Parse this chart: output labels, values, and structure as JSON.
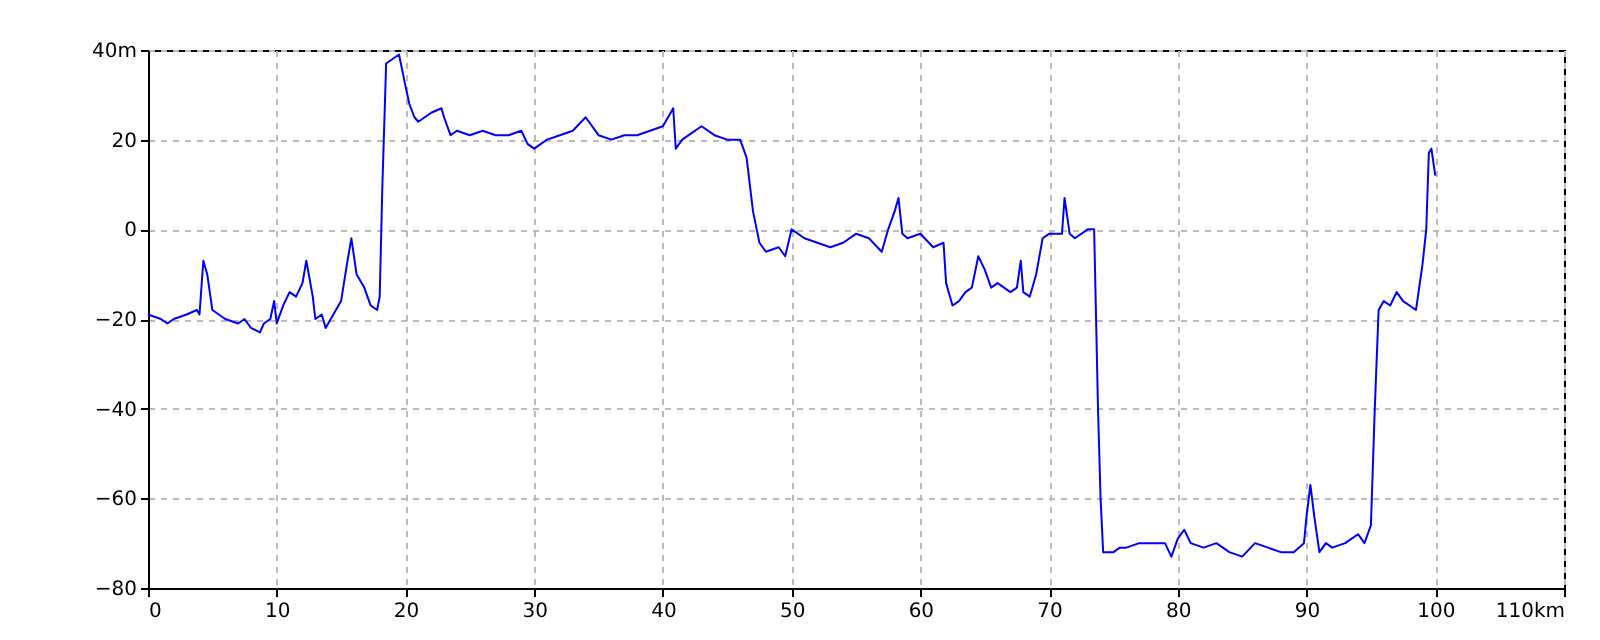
{
  "chart_data": {
    "type": "line",
    "x": [
      0,
      1,
      1.5,
      2,
      3,
      3.8,
      4,
      4.3,
      4.6,
      5,
      6,
      7,
      7.5,
      8,
      8.7,
      9,
      9.5,
      9.8,
      10,
      10.5,
      11,
      11.5,
      12,
      12.3,
      12.8,
      13,
      13.5,
      13.8,
      14.2,
      15,
      15.5,
      15.8,
      16.2,
      16.8,
      17.3,
      17.8,
      18,
      18.2,
      18.5,
      19,
      19.5,
      20,
      20.3,
      20.7,
      21,
      22,
      22.8,
      23,
      23.5,
      24,
      25,
      26,
      27,
      28,
      29,
      29.5,
      30,
      31,
      32,
      33,
      34,
      35,
      36,
      37,
      38,
      39,
      40,
      40.8,
      41,
      41.5,
      42,
      43,
      44,
      45,
      46,
      46.5,
      47,
      47.5,
      48,
      49,
      49.5,
      50,
      51,
      52,
      53,
      54,
      55,
      56,
      57,
      57.5,
      58,
      58.3,
      58.6,
      59,
      60,
      61,
      61.8,
      62,
      62.5,
      63,
      63.5,
      64,
      64.5,
      65,
      65.5,
      66,
      67,
      67.5,
      67.8,
      68,
      68.5,
      69,
      69.5,
      70,
      71,
      71.2,
      71.6,
      72,
      73,
      73.5,
      73.8,
      74,
      74.2,
      75,
      75.5,
      76,
      77,
      78,
      79,
      79.5,
      80,
      80.5,
      81,
      82,
      83,
      84,
      85,
      86,
      87,
      88,
      89,
      89.8,
      90,
      90.3,
      90.6,
      91,
      91.5,
      92,
      93,
      94,
      94.5,
      95,
      95.3,
      95.6,
      96,
      96.5,
      97,
      97.5,
      98,
      98.5,
      99,
      99.3,
      99.5,
      99.7,
      100
    ],
    "series": [
      {
        "color": "#0000ff",
        "values": [
          -19,
          -20,
          -21,
          -20,
          -19,
          -18,
          -19,
          -7,
          -10,
          -18,
          -20,
          -21,
          -20,
          -22,
          -23,
          -21,
          -20,
          -16,
          -21,
          -17,
          -14,
          -15,
          -12,
          -7,
          -15,
          -20,
          -19,
          -22,
          -20,
          -16,
          -7,
          -2,
          -10,
          -13,
          -17,
          -18,
          -15,
          9,
          37,
          38,
          39,
          32,
          28,
          25,
          24,
          26,
          27,
          25,
          21,
          22,
          21,
          22,
          21,
          21,
          22,
          19,
          18,
          20,
          21,
          22,
          25,
          21,
          20,
          21,
          21,
          22,
          23,
          27,
          18,
          20,
          21,
          23,
          21,
          20,
          20,
          16,
          4,
          -3,
          -5,
          -4,
          -6,
          0,
          -2,
          -3,
          -4,
          -3,
          -1,
          -2,
          -5,
          0,
          4,
          7,
          -1,
          -2,
          -1,
          -4,
          -3,
          -12,
          -17,
          -16,
          -14,
          -13,
          -6,
          -9,
          -13,
          -12,
          -14,
          -13,
          -7,
          -14,
          -15,
          -10,
          -2,
          -1,
          -1,
          7,
          -1,
          -2,
          0,
          0,
          -40,
          -60,
          -72,
          -72,
          -71,
          -71,
          -70,
          -70,
          -70,
          -73,
          -69,
          -67,
          -70,
          -71,
          -70,
          -72,
          -73,
          -70,
          -71,
          -72,
          -72,
          -70,
          -64,
          -57,
          -64,
          -72,
          -70,
          -71,
          -70,
          -68,
          -70,
          -66,
          -40,
          -18,
          -16,
          -17,
          -14,
          -16,
          -17,
          -18,
          -8,
          0,
          17,
          18,
          12
        ]
      }
    ],
    "xlim": [
      0,
      110
    ],
    "xticks": [
      0,
      10,
      20,
      30,
      40,
      50,
      60,
      70,
      80,
      90,
      100,
      {
        "value": 110,
        "label": "110km"
      }
    ],
    "ylim": [
      -80,
      40
    ],
    "yticks": [
      -80,
      -60,
      -40,
      -20,
      0,
      20,
      {
        "value": 40,
        "label": "40m"
      }
    ],
    "grid": true,
    "line_style": "solid",
    "marker": "none"
  }
}
